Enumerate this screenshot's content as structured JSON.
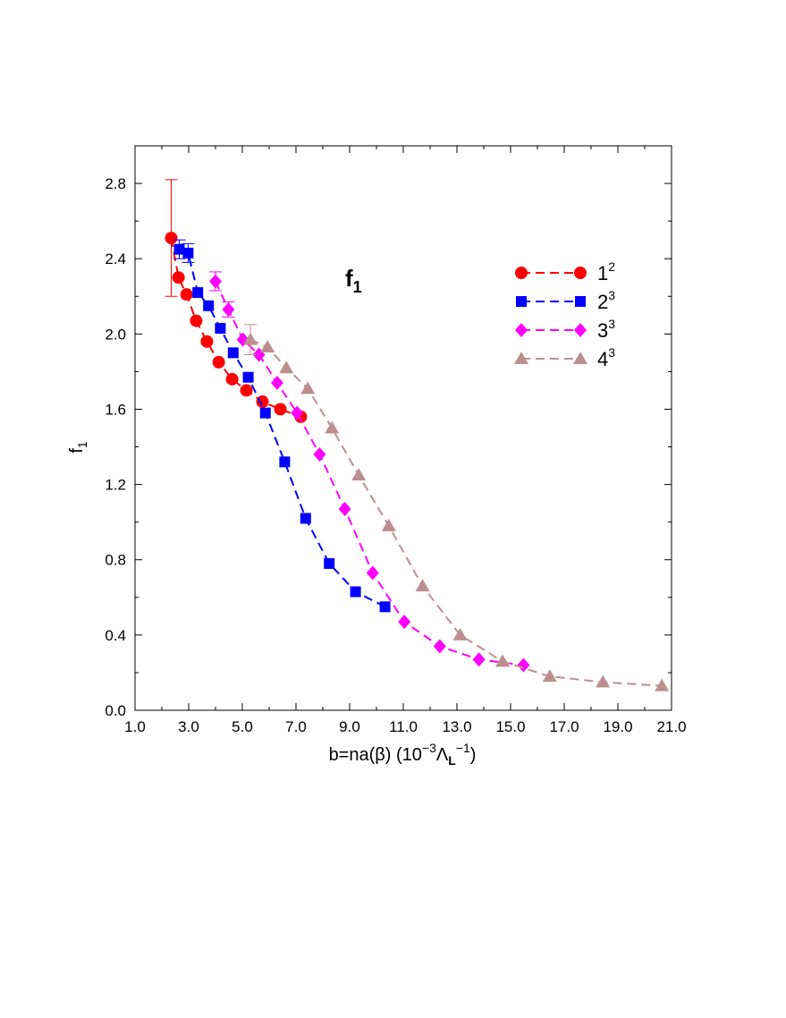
{
  "chart_data": {
    "type": "line",
    "xlabel": {
      "base": "b=na(β) (10",
      "sup1": "−3",
      "mid": "Λ",
      "sub": "L",
      "sup2": "−1",
      "end": ")"
    },
    "ylabel": {
      "base": "f",
      "sub": "1"
    },
    "annotation": {
      "base": "f",
      "sub": "1"
    },
    "xlim": [
      1.0,
      21.0
    ],
    "ylim": [
      0.0,
      3.0
    ],
    "xticks": [
      "1.0",
      "3.0",
      "5.0",
      "7.0",
      "9.0",
      "11.0",
      "13.0",
      "15.0",
      "17.0",
      "19.0",
      "21.0"
    ],
    "yticks": [
      "0.0",
      "0.4",
      "0.8",
      "1.2",
      "1.6",
      "2.0",
      "2.4",
      "2.8"
    ],
    "grid": false,
    "legend_position": "top-right",
    "series": [
      {
        "label": {
          "base": "1",
          "sup": "2"
        },
        "color": "#ff0000",
        "marker": "circle",
        "x": [
          2.35,
          2.62,
          2.92,
          3.28,
          3.68,
          4.12,
          4.62,
          5.15,
          5.75,
          6.42,
          7.18
        ],
        "y": [
          2.51,
          2.3,
          2.21,
          2.07,
          1.96,
          1.85,
          1.76,
          1.7,
          1.64,
          1.6,
          1.56
        ],
        "err": [
          0.31,
          0.0,
          0.0,
          0.0,
          0.0,
          0.0,
          0.0,
          0.0,
          0.0,
          0.0,
          0.0
        ]
      },
      {
        "label": {
          "base": "2",
          "sup": "3"
        },
        "color": "#0000ff",
        "marker": "square",
        "x": [
          2.65,
          2.98,
          3.34,
          3.74,
          4.18,
          4.66,
          5.22,
          5.86,
          6.58,
          7.36,
          8.24,
          9.22,
          10.32
        ],
        "y": [
          2.45,
          2.43,
          2.22,
          2.15,
          2.03,
          1.9,
          1.77,
          1.58,
          1.32,
          1.02,
          0.78,
          0.63,
          0.55
        ],
        "err": [
          0.05,
          0.05,
          0.0,
          0.0,
          0.0,
          0.0,
          0.0,
          0.0,
          0.0,
          0.0,
          0.0,
          0.0,
          0.0
        ]
      },
      {
        "label": {
          "base": "3",
          "sup": "3"
        },
        "color": "#ff00ff",
        "marker": "diamond",
        "x": [
          4.0,
          4.48,
          5.02,
          5.62,
          6.3,
          7.04,
          7.88,
          8.82,
          9.86,
          11.04,
          12.36,
          13.82,
          15.48
        ],
        "y": [
          2.28,
          2.13,
          1.97,
          1.89,
          1.74,
          1.58,
          1.36,
          1.07,
          0.73,
          0.47,
          0.34,
          0.27,
          0.24
        ],
        "err": [
          0.05,
          0.04,
          0.0,
          0.0,
          0.0,
          0.0,
          0.0,
          0.0,
          0.0,
          0.0,
          0.0,
          0.0,
          0.0
        ]
      },
      {
        "label": {
          "base": "4",
          "sup": "3"
        },
        "color": "#bc8f8f",
        "marker": "triangle",
        "x": [
          5.3,
          5.94,
          6.64,
          7.44,
          8.34,
          9.34,
          10.46,
          11.72,
          13.12,
          14.7,
          16.46,
          18.44,
          20.64
        ],
        "y": [
          1.97,
          1.93,
          1.82,
          1.71,
          1.5,
          1.25,
          0.98,
          0.66,
          0.4,
          0.26,
          0.18,
          0.15,
          0.13
        ],
        "err": [
          0.08,
          0.0,
          0.0,
          0.0,
          0.0,
          0.0,
          0.0,
          0.0,
          0.0,
          0.0,
          0.0,
          0.0,
          0.0
        ]
      }
    ]
  }
}
